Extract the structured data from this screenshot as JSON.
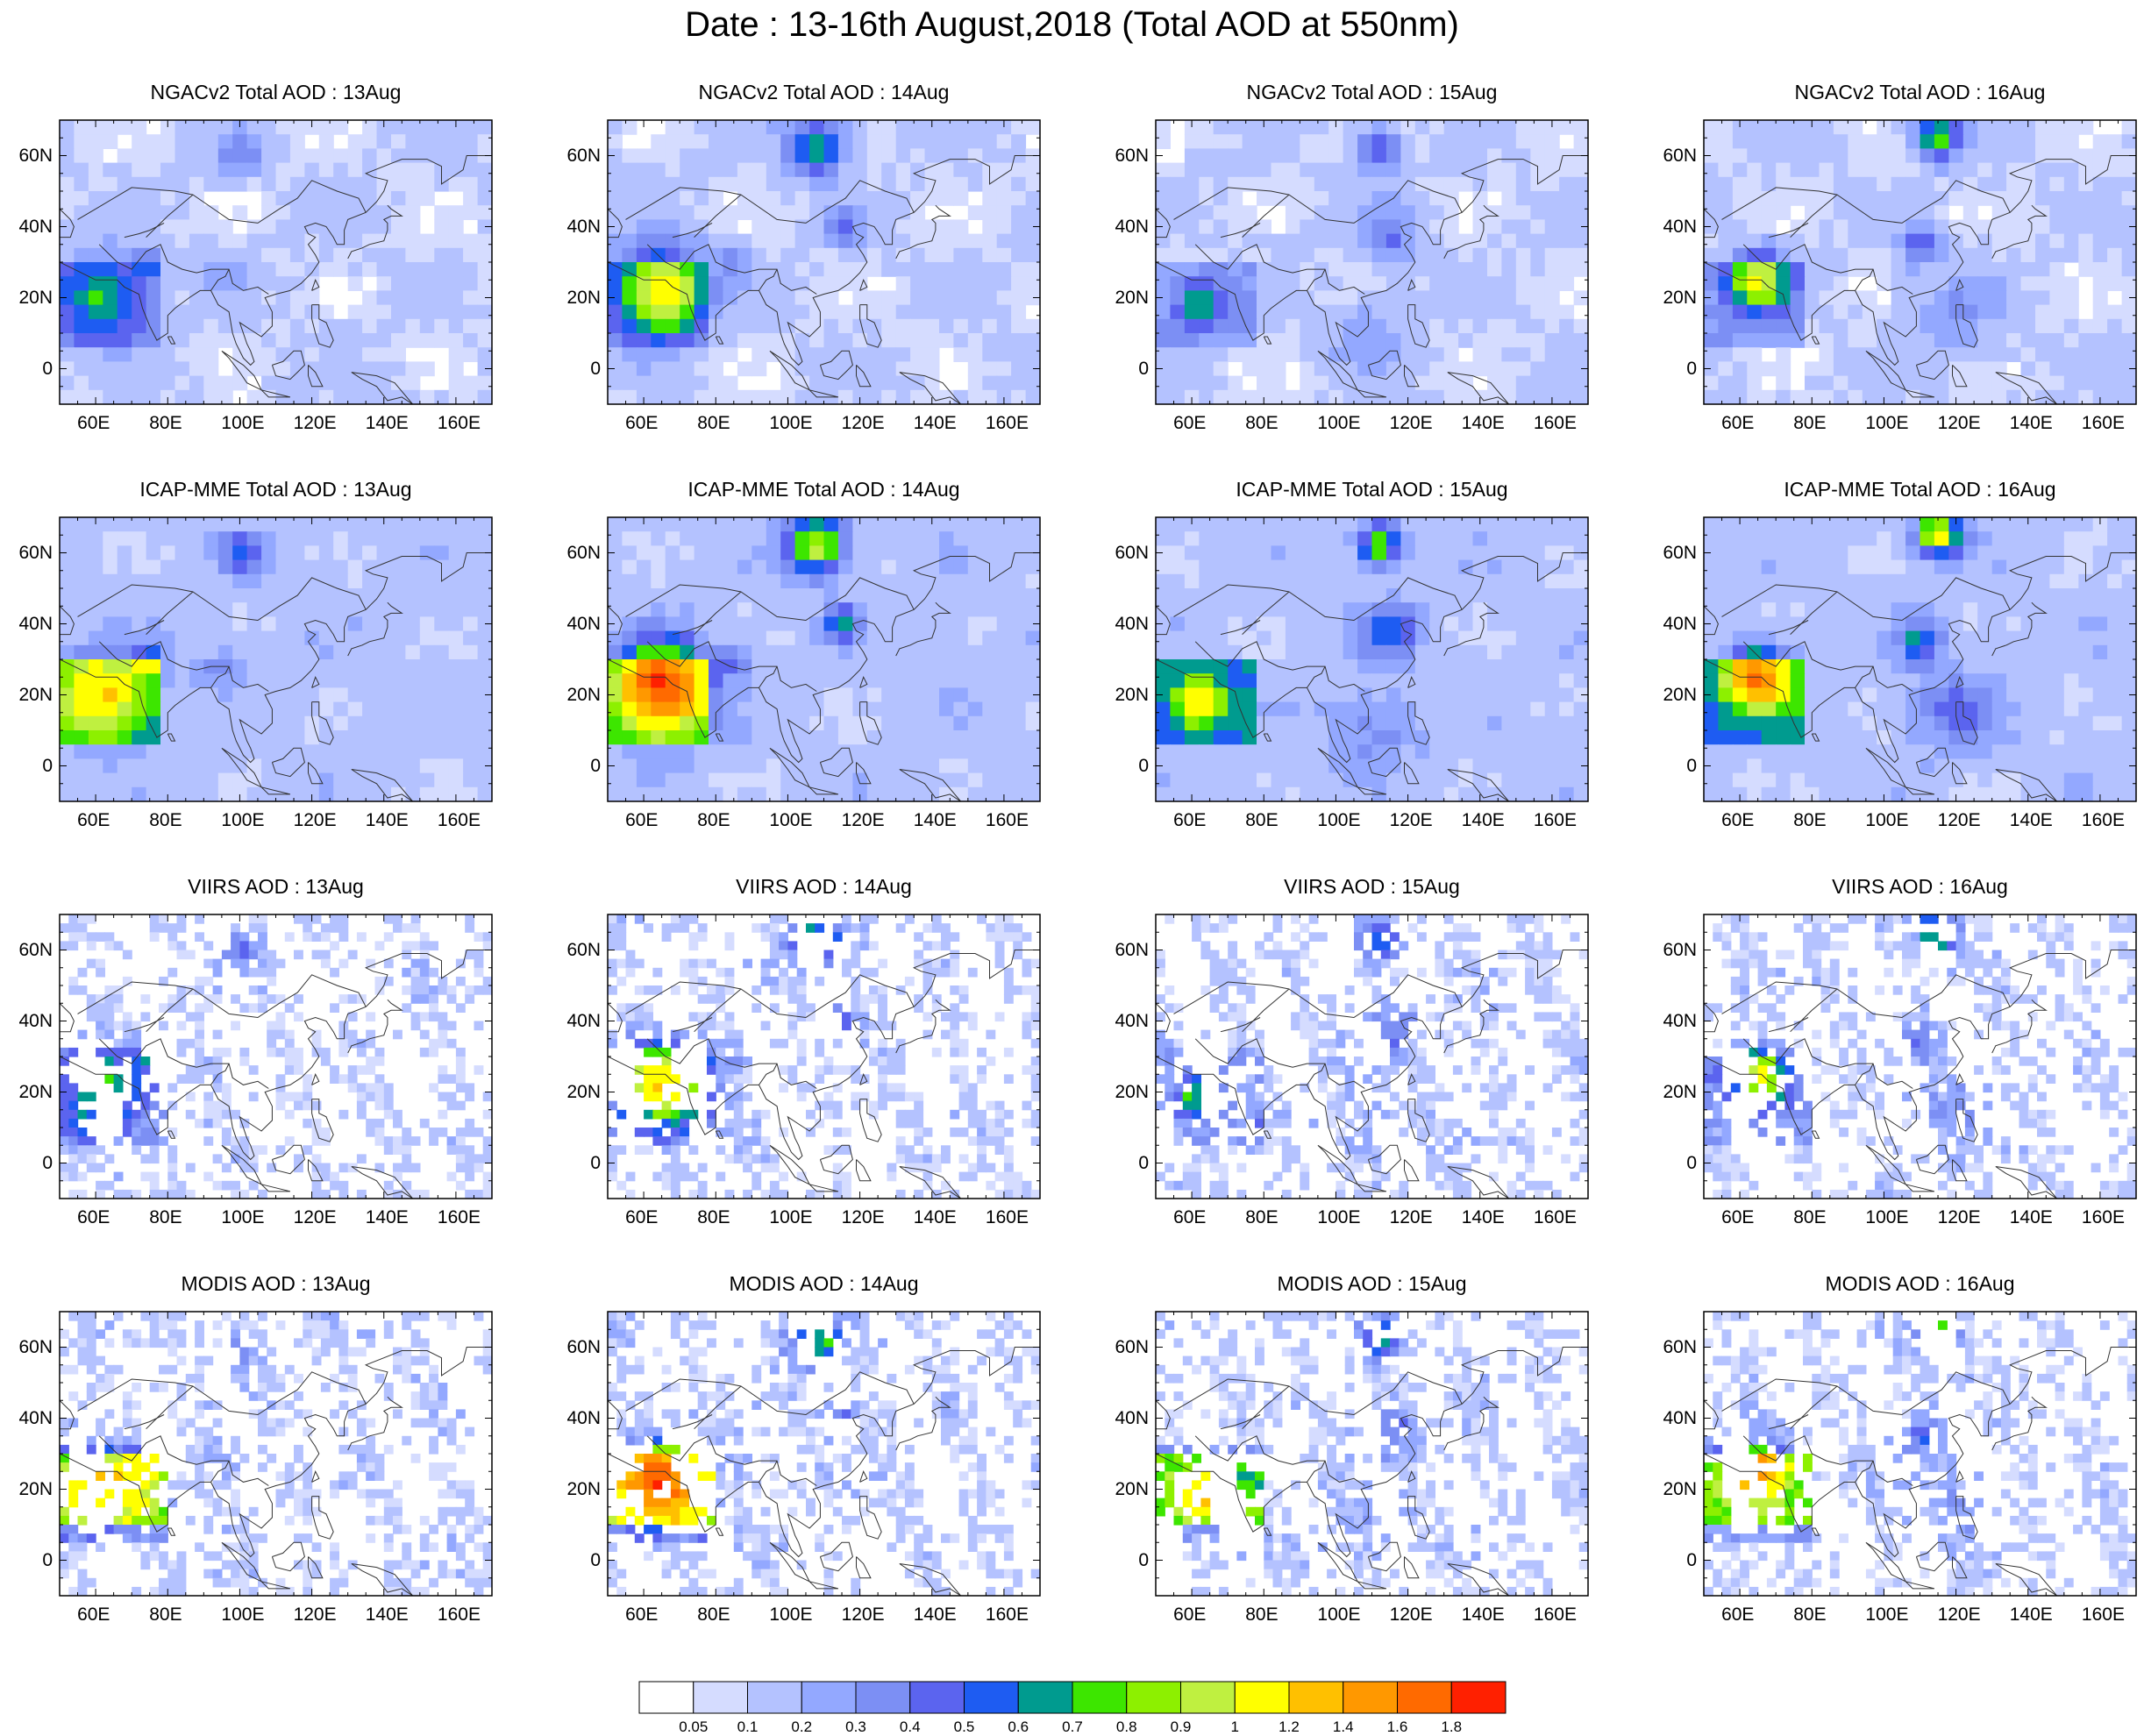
{
  "title": "Date : 13-16th August,2018 (Total AOD at 550nm)",
  "panels": [
    {
      "title": "NGACv2 Total AOD : 13Aug"
    },
    {
      "title": "NGACv2 Total AOD : 14Aug"
    },
    {
      "title": "NGACv2 Total AOD : 15Aug"
    },
    {
      "title": "NGACv2 Total AOD : 16Aug"
    },
    {
      "title": "ICAP-MME Total AOD : 13Aug"
    },
    {
      "title": "ICAP-MME Total AOD : 14Aug"
    },
    {
      "title": "ICAP-MME Total AOD : 15Aug"
    },
    {
      "title": "ICAP-MME Total AOD : 16Aug"
    },
    {
      "title": "VIIRS AOD : 13Aug"
    },
    {
      "title": "VIIRS AOD : 14Aug"
    },
    {
      "title": "VIIRS AOD : 15Aug"
    },
    {
      "title": "VIIRS AOD : 16Aug"
    },
    {
      "title": "MODIS AOD : 13Aug"
    },
    {
      "title": "MODIS AOD : 14Aug"
    },
    {
      "title": "MODIS AOD : 15Aug"
    },
    {
      "title": "MODIS AOD : 16Aug"
    }
  ],
  "x_ticks": [
    "60E",
    "80E",
    "100E",
    "120E",
    "140E",
    "160E"
  ],
  "y_ticks": [
    "60N",
    "40N",
    "20N",
    "0"
  ],
  "colorbar": {
    "colors": [
      "#ffffff",
      "#d5dcff",
      "#b4c2ff",
      "#93a8ff",
      "#7c8ff4",
      "#5b64ef",
      "#1e5cf2",
      "#009b8f",
      "#3de600",
      "#8df000",
      "#bff040",
      "#ffff00",
      "#ffc000",
      "#ff9800",
      "#ff6a00",
      "#ff2000"
    ],
    "labels": [
      "0.05",
      "0.1",
      "0.2",
      "0.3",
      "0.4",
      "0.5",
      "0.6",
      "0.7",
      "0.8",
      "0.9",
      "1",
      "1.2",
      "1.4",
      "1.6",
      "1.8"
    ]
  }
}
